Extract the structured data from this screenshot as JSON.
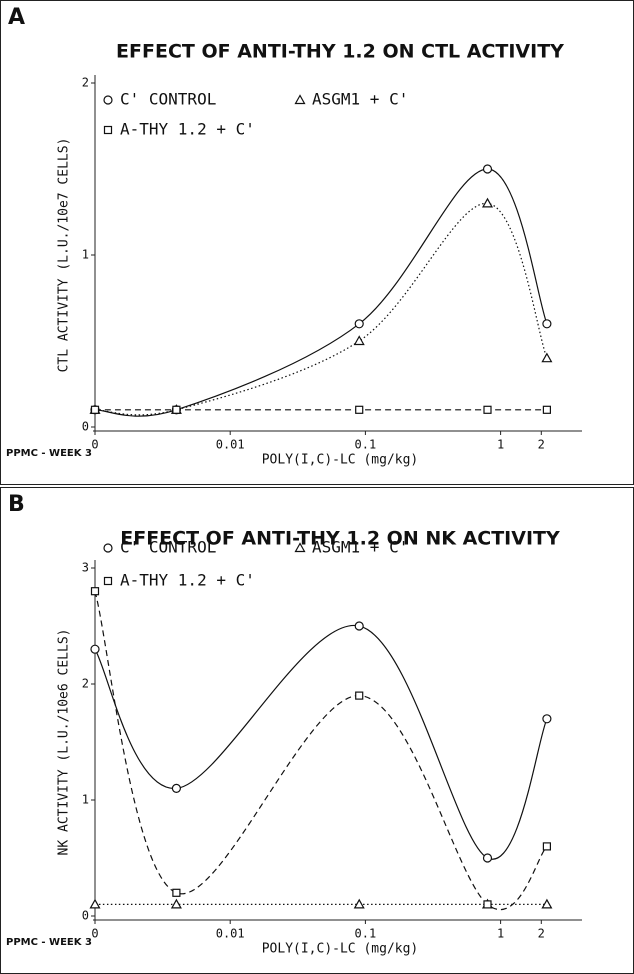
{
  "chart_data": [
    {
      "type": "line",
      "label": "A",
      "title": "EFFECT OF ANTI-THY 1.2 ON CTL ACTIVITY",
      "x_label": "POLY(I,C)-LC (mg/kg)",
      "y_label": "CTL ACTIVITY (L.U./10e7 CELLS)",
      "note": "PPMC - WEEK 3",
      "x": [
        0,
        0.004,
        0.09,
        0.8,
        2.2
      ],
      "xscale": "log",
      "xlim": [
        0,
        4
      ],
      "xticks": [
        0,
        0.01,
        0.1,
        1,
        2
      ],
      "ylim": [
        0,
        2
      ],
      "yticks": [
        0,
        1,
        2
      ],
      "series": [
        {
          "name": "C' CONTROL",
          "color": "#111111",
          "marker": "circle",
          "linestyle": "solid",
          "values": [
            0.1,
            0.1,
            0.6,
            1.5,
            0.6
          ]
        },
        {
          "name": "ASGM1 + C'",
          "color": "#111111",
          "marker": "triangle",
          "linestyle": "dotted",
          "values": [
            0.1,
            0.1,
            0.5,
            1.3,
            0.4
          ]
        },
        {
          "name": "A-THY 1.2 + C'",
          "color": "#111111",
          "marker": "square",
          "linestyle": "dashed",
          "values": [
            0.1,
            0.1,
            0.1,
            0.1,
            0.1
          ]
        }
      ]
    },
    {
      "type": "line",
      "label": "B",
      "title": "EFFECT OF ANTI-THY 1.2 ON NK ACTIVITY",
      "x_label": "POLY(I,C)-LC (mg/kg)",
      "y_label": "NK ACTIVITY (L.U./10e6 CELLS)",
      "note": "PPMC - WEEK 3",
      "x": [
        0,
        0.004,
        0.09,
        0.8,
        2.2
      ],
      "xscale": "log",
      "xlim": [
        0,
        4
      ],
      "xticks": [
        0,
        0.01,
        0.1,
        1,
        2
      ],
      "ylim": [
        0,
        3
      ],
      "yticks": [
        0,
        1,
        2,
        3
      ],
      "series": [
        {
          "name": "C' CONTROL",
          "color": "#111111",
          "marker": "circle",
          "linestyle": "solid",
          "values": [
            2.3,
            1.1,
            2.5,
            0.5,
            1.7
          ]
        },
        {
          "name": "ASGM1 + C'",
          "color": "#111111",
          "marker": "triangle",
          "linestyle": "dotted",
          "values": [
            0.1,
            0.1,
            0.1,
            0.1,
            0.1
          ]
        },
        {
          "name": "A-THY 1.2 + C'",
          "color": "#111111",
          "marker": "square",
          "linestyle": "dashed",
          "values": [
            2.8,
            0.2,
            1.9,
            0.1,
            0.6
          ]
        }
      ]
    }
  ]
}
